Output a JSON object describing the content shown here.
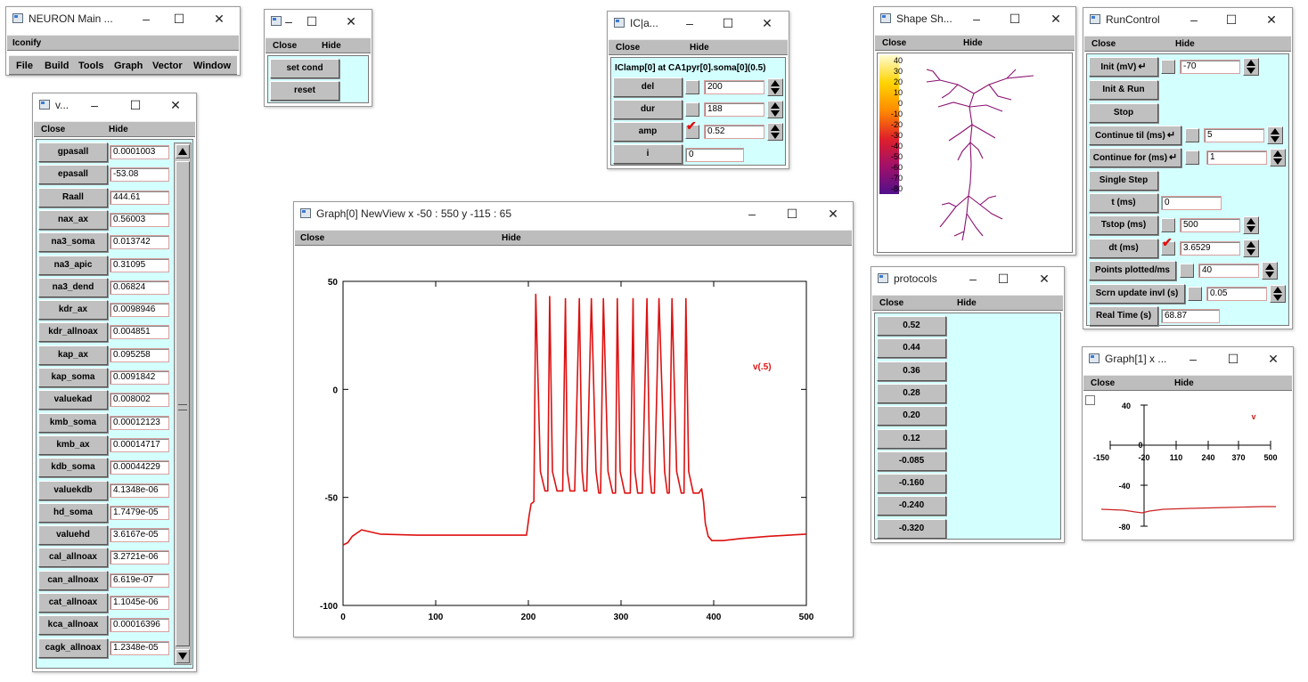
{
  "windows": {
    "main": {
      "title": "NEURON Main ...",
      "iconify": "Iconify",
      "menu": [
        "File",
        "Build",
        "Tools",
        "Graph",
        "Vector",
        "Window"
      ]
    },
    "cond": {
      "close": "Close",
      "hide": "Hide",
      "set_cond": "set cond",
      "reset": "reset"
    },
    "iclamp": {
      "title": "IC|a...",
      "close": "Close",
      "hide": "Hide",
      "heading": "IClamp[0] at CA1pyr[0].soma[0](0.5)",
      "rows": [
        {
          "label": "del",
          "value": "200"
        },
        {
          "label": "dur",
          "value": "188"
        },
        {
          "label": "amp",
          "value": "0.52"
        },
        {
          "label": "i",
          "value": "0"
        }
      ]
    },
    "shape": {
      "title": "Shape Sh...",
      "close": "Close",
      "hide": "Hide",
      "scale": [
        "40",
        "30",
        "20",
        "10",
        "0",
        "-10",
        "-20",
        "-30",
        "-40",
        "-50",
        "-60",
        "-70",
        "-80"
      ]
    },
    "runcontrol": {
      "title": "RunControl",
      "close": "Close",
      "hide": "Hide",
      "rows": [
        {
          "label": "Init (mV)",
          "value": "-70"
        },
        {
          "label": "Init & Run"
        },
        {
          "label": "Stop"
        },
        {
          "label": "Continue til (ms)",
          "value": "5"
        },
        {
          "label": "Continue for (ms)",
          "value": "1"
        },
        {
          "label": "Single Step"
        },
        {
          "label": "t (ms)",
          "value": "0"
        },
        {
          "label": "Tstop (ms)",
          "value": "500"
        },
        {
          "label": "dt (ms)",
          "value": "3.6529"
        },
        {
          "label": "Points plotted/ms",
          "value": "40"
        },
        {
          "label": "Scrn update invl (s)",
          "value": "0.05"
        },
        {
          "label": "Real Time (s)",
          "value": "68.87"
        }
      ]
    },
    "params": {
      "title": "v...",
      "close": "Close",
      "hide": "Hide",
      "rows": [
        {
          "label": "gpasall",
          "value": "0.0001003"
        },
        {
          "label": "epasall",
          "value": "-53.08"
        },
        {
          "label": "Raall",
          "value": "444.61"
        },
        {
          "label": "nax_ax",
          "value": "0.56003"
        },
        {
          "label": "na3_soma",
          "value": "0.013742"
        },
        {
          "label": "na3_apic",
          "value": "0.31095"
        },
        {
          "label": "na3_dend",
          "value": "0.06824"
        },
        {
          "label": "kdr_ax",
          "value": "0.0098946"
        },
        {
          "label": "kdr_allnoax",
          "value": "0.004851"
        },
        {
          "label": "kap_ax",
          "value": "0.095258"
        },
        {
          "label": "kap_soma",
          "value": "0.0091842"
        },
        {
          "label": "valuekad",
          "value": "0.008002"
        },
        {
          "label": "kmb_soma",
          "value": "0.00012123"
        },
        {
          "label": "kmb_ax",
          "value": "0.00014717"
        },
        {
          "label": "kdb_soma",
          "value": "0.00044229"
        },
        {
          "label": "valuekdb",
          "value": "4.1348e-06"
        },
        {
          "label": "hd_soma",
          "value": "1.7479e-05"
        },
        {
          "label": "valuehd",
          "value": "3.6167e-05"
        },
        {
          "label": "cal_allnoax",
          "value": "3.2721e-06"
        },
        {
          "label": "can_allnoax",
          "value": "6.619e-07"
        },
        {
          "label": "cat_allnoax",
          "value": "1.1045e-06"
        },
        {
          "label": "kca_allnoax",
          "value": "0.00016396"
        },
        {
          "label": "cagk_allnoax",
          "value": "1.2348e-05"
        }
      ]
    },
    "graph0": {
      "title": "Graph[0] NewView x -50 : 550  y -115 : 65",
      "close": "Close",
      "hide": "Hide"
    },
    "protocols": {
      "title": "protocols",
      "close": "Close",
      "hide": "Hide",
      "items": [
        "0.52",
        "0.44",
        "0.36",
        "0.28",
        "0.20",
        "0.12",
        "-0.085",
        "-0.160",
        "-0.240",
        "-0.320"
      ]
    },
    "graph1": {
      "title": "Graph[1]  x ...",
      "close": "Close",
      "hide": "Hide",
      "yticks": [
        "40",
        "0",
        "-40",
        "-80"
      ],
      "xticks": [
        "-150",
        "-20",
        "110",
        "240",
        "370",
        "500"
      ],
      "label": "v"
    }
  },
  "chart_data": {
    "type": "line",
    "title": "",
    "xlabel": "",
    "ylabel": "",
    "xlim": [
      0,
      500
    ],
    "ylim": [
      -100,
      50
    ],
    "xticks": [
      "0",
      "100",
      "200",
      "300",
      "400",
      "500"
    ],
    "yticks": [
      "50",
      "0",
      "-50",
      "-100"
    ],
    "grid": false,
    "series": [
      {
        "name": "v(.5)",
        "color": "#dd1111",
        "x": [
          0,
          5,
          10,
          20,
          40,
          80,
          120,
          160,
          198,
          201,
          203,
          206,
          208,
          213,
          218,
          221,
          223,
          226,
          231,
          237,
          240,
          242,
          245,
          250,
          255,
          258,
          260,
          263,
          268,
          273,
          276,
          278,
          281,
          286,
          291,
          294,
          296,
          299,
          304,
          310,
          313,
          315,
          318,
          323,
          328,
          331,
          333,
          336,
          341,
          347,
          350,
          352,
          355,
          360,
          365,
          368,
          370,
          373,
          378,
          384,
          387,
          389,
          391,
          394,
          398,
          402,
          410,
          430,
          460,
          500
        ],
        "y": [
          -72,
          -71,
          -68,
          -65,
          -67,
          -67.5,
          -67.5,
          -67.5,
          -67.5,
          -58,
          -53,
          -52,
          44,
          -38,
          -47,
          -47,
          43,
          -38,
          -47,
          -47,
          42,
          -38,
          -47,
          -47,
          42,
          -38,
          -47,
          -47,
          42,
          -38,
          -48,
          -48,
          42,
          -38,
          -48,
          -48,
          42,
          -38,
          -48,
          -48,
          42,
          -38,
          -48,
          -48,
          42,
          -38,
          -48,
          -48,
          42,
          -38,
          -48,
          -48,
          42,
          -38,
          -48,
          -48,
          42,
          -38,
          -48,
          -48,
          -46,
          -52,
          -62,
          -68,
          -70,
          -70,
          -70,
          -69,
          -68,
          -67
        ]
      }
    ]
  }
}
